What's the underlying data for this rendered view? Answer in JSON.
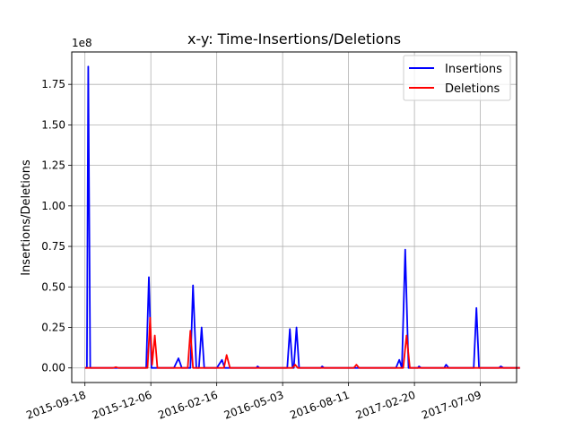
{
  "chart_data": {
    "type": "line",
    "title": "x-y: Time-Insertions/Deletions",
    "xlabel": "",
    "ylabel": "Insertions/Deletions",
    "y_multiplier": "1e8",
    "grid": true,
    "legend_placement": "top-right",
    "x_tick_labels": [
      "2015-09-18",
      "2015-12-06",
      "2016-02-16",
      "2016-05-03",
      "2016-08-11",
      "2017-02-20",
      "2017-07-09"
    ],
    "y_ticks": [
      0.0,
      0.25,
      0.5,
      0.75,
      1.0,
      1.25,
      1.5,
      1.75
    ],
    "y_tick_labels": [
      "0.00",
      "0.25",
      "0.50",
      "0.75",
      "1.00",
      "1.25",
      "1.50",
      "1.75"
    ],
    "ylim": [
      -0.09,
      1.95
    ],
    "xlim": [
      -0.2,
      6.55
    ],
    "series": [
      {
        "name": "Insertions",
        "color": "#0000ff",
        "points": [
          [
            0.0,
            0.0
          ],
          [
            0.03,
            0.0
          ],
          [
            0.05,
            1.86
          ],
          [
            0.08,
            0.0
          ],
          [
            0.5,
            0.0
          ],
          [
            0.65,
            0.0
          ],
          [
            0.93,
            0.0
          ],
          [
            0.97,
            0.56
          ],
          [
            1.01,
            0.0
          ],
          [
            1.35,
            0.0
          ],
          [
            1.42,
            0.06
          ],
          [
            1.47,
            0.0
          ],
          [
            1.6,
            0.0
          ],
          [
            1.64,
            0.51
          ],
          [
            1.69,
            0.0
          ],
          [
            1.73,
            0.0
          ],
          [
            1.77,
            0.25
          ],
          [
            1.81,
            0.0
          ],
          [
            2.0,
            0.0
          ],
          [
            2.08,
            0.05
          ],
          [
            2.12,
            0.0
          ],
          [
            2.6,
            0.0
          ],
          [
            2.62,
            0.01
          ],
          [
            2.65,
            0.0
          ],
          [
            3.07,
            0.0
          ],
          [
            3.11,
            0.24
          ],
          [
            3.15,
            0.0
          ],
          [
            3.17,
            0.0
          ],
          [
            3.21,
            0.25
          ],
          [
            3.25,
            0.0
          ],
          [
            3.58,
            0.0
          ],
          [
            3.6,
            0.01
          ],
          [
            3.63,
            0.0
          ],
          [
            4.72,
            0.0
          ],
          [
            4.77,
            0.05
          ],
          [
            4.81,
            0.0
          ],
          [
            4.86,
            0.73
          ],
          [
            4.91,
            0.0
          ],
          [
            5.05,
            0.0
          ],
          [
            5.07,
            0.01
          ],
          [
            5.1,
            0.0
          ],
          [
            5.45,
            0.0
          ],
          [
            5.48,
            0.02
          ],
          [
            5.52,
            0.0
          ],
          [
            5.9,
            0.0
          ],
          [
            5.94,
            0.37
          ],
          [
            5.98,
            0.0
          ],
          [
            6.28,
            0.0
          ],
          [
            6.31,
            0.01
          ],
          [
            6.35,
            0.0
          ],
          [
            6.6,
            0.0
          ]
        ]
      },
      {
        "name": "Deletions",
        "color": "#ff0000",
        "points": [
          [
            0.0,
            0.0
          ],
          [
            0.3,
            0.0
          ],
          [
            0.43,
            0.0
          ],
          [
            0.47,
            0.005
          ],
          [
            0.51,
            0.0
          ],
          [
            0.95,
            0.0
          ],
          [
            0.99,
            0.31
          ],
          [
            1.02,
            0.02
          ],
          [
            1.06,
            0.2
          ],
          [
            1.1,
            0.0
          ],
          [
            1.56,
            0.0
          ],
          [
            1.6,
            0.23
          ],
          [
            1.64,
            0.0
          ],
          [
            2.11,
            0.0
          ],
          [
            2.15,
            0.08
          ],
          [
            2.2,
            0.0
          ],
          [
            3.15,
            0.0
          ],
          [
            3.19,
            0.02
          ],
          [
            3.23,
            0.0
          ],
          [
            4.08,
            0.0
          ],
          [
            4.12,
            0.02
          ],
          [
            4.16,
            0.0
          ],
          [
            4.83,
            0.0
          ],
          [
            4.88,
            0.2
          ],
          [
            4.93,
            0.0
          ],
          [
            6.6,
            0.0
          ]
        ]
      }
    ]
  }
}
